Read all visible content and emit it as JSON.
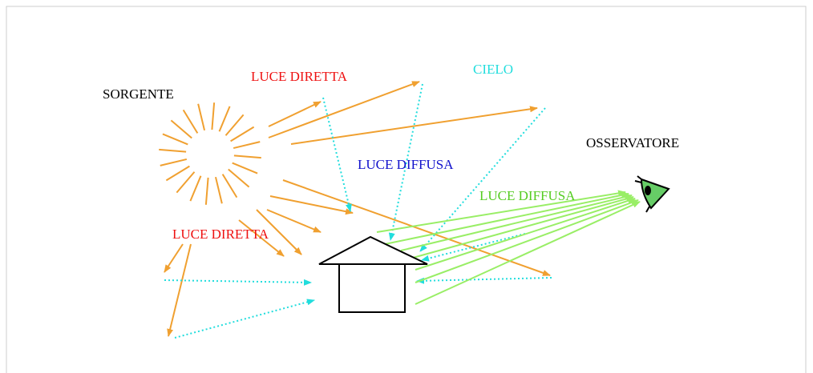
{
  "labels": {
    "source": "SORGENTE",
    "direct_light_top": "LUCE DIRETTA",
    "sky": "CIELO",
    "diffuse_light_blue": "LUCE DIFFUSA",
    "observer": "OSSERVATORE",
    "diffuse_light_green": "LUCE DIFFUSA",
    "direct_light_bottom": "LUCE DIRETTA"
  }
}
